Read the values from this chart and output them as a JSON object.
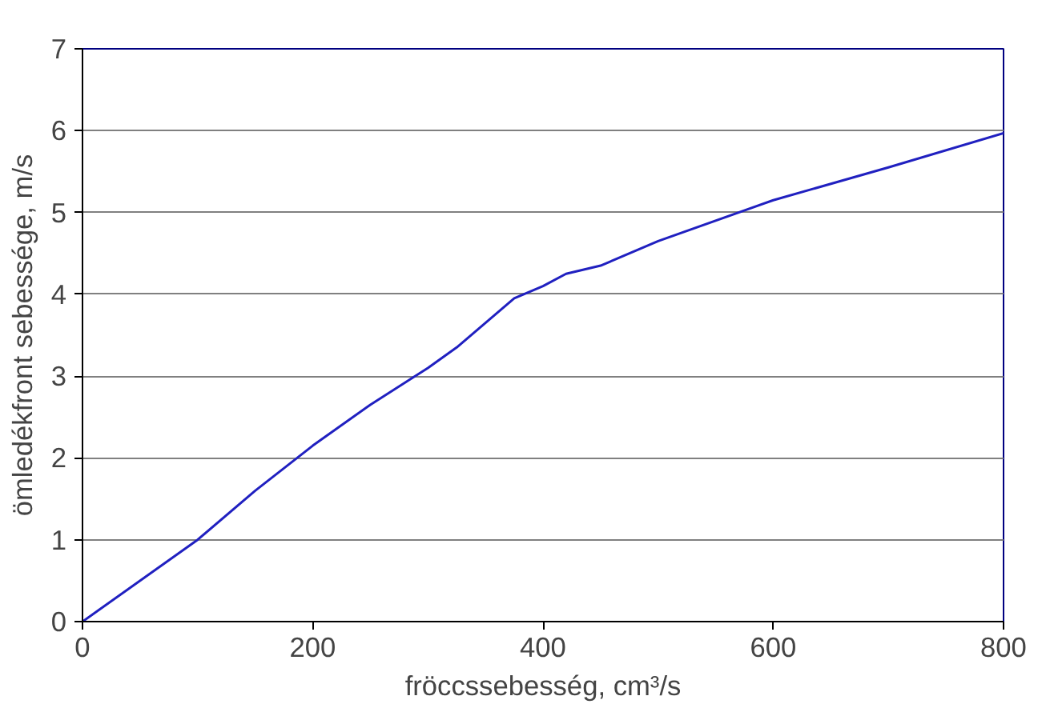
{
  "chart_data": {
    "type": "line",
    "xlabel": "fröccssebesség, cm³/s",
    "ylabel": "ömledékfront sebessége, m/s",
    "series": [
      {
        "color": "#2020c0",
        "x": [
          0,
          100,
          150,
          200,
          250,
          300,
          325,
          350,
          375,
          400,
          420,
          450,
          500,
          600,
          700,
          800
        ],
        "values": [
          0,
          1.0,
          1.6,
          2.15,
          2.65,
          3.1,
          3.35,
          3.65,
          3.95,
          4.1,
          4.25,
          4.35,
          4.65,
          5.15,
          5.55,
          5.97
        ]
      }
    ],
    "xlim": [
      0,
      800
    ],
    "ylim": [
      0,
      7
    ],
    "xticks": [
      0,
      200,
      400,
      600,
      800
    ],
    "yticks": [
      0,
      1,
      2,
      3,
      4,
      5,
      6,
      7
    ],
    "grid": "y",
    "marker": "none",
    "line_style": "solid"
  }
}
